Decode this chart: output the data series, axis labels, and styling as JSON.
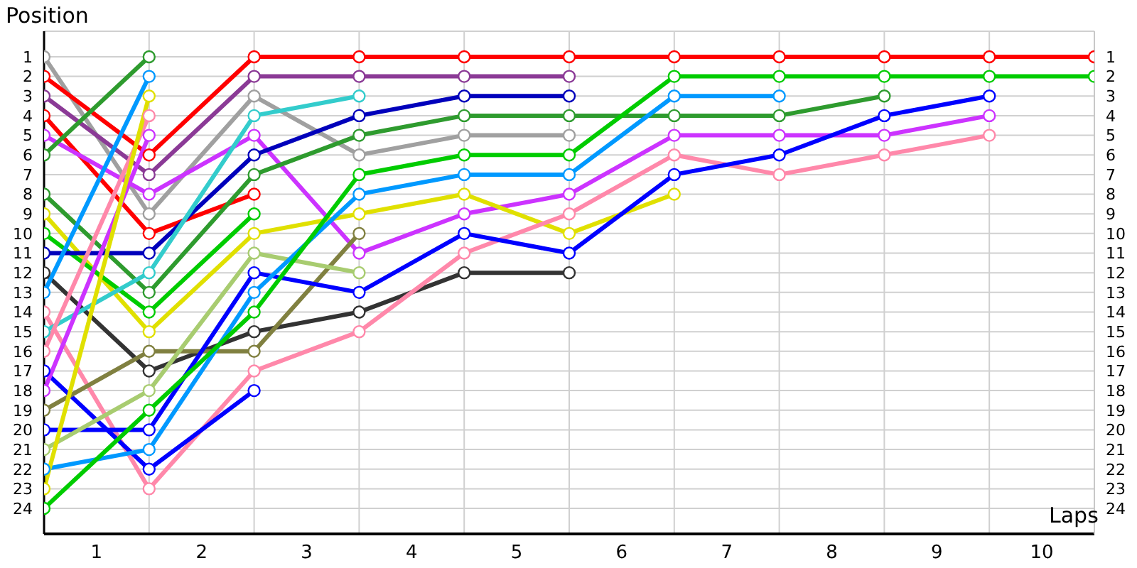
{
  "chart_data": {
    "type": "line",
    "xlabel": "Laps",
    "ylabel": "Position",
    "x": [
      0,
      1,
      2,
      3,
      4,
      5,
      6,
      7,
      8,
      9,
      10
    ],
    "xlim": [
      0,
      10
    ],
    "xticks": [
      {
        "value": 0,
        "label": null
      },
      {
        "value": 0.5,
        "label": "1"
      },
      {
        "value": 1,
        "label": null
      },
      {
        "value": 1.5,
        "label": "2"
      },
      {
        "value": 2,
        "label": null
      },
      {
        "value": 2.5,
        "label": "3"
      },
      {
        "value": 3,
        "label": null
      },
      {
        "value": 3.5,
        "label": "4"
      },
      {
        "value": 4,
        "label": null
      },
      {
        "value": 4.5,
        "label": "5"
      },
      {
        "value": 5,
        "label": null
      },
      {
        "value": 5.5,
        "label": "6"
      },
      {
        "value": 6,
        "label": null
      },
      {
        "value": 6.5,
        "label": "7"
      },
      {
        "value": 7,
        "label": null
      },
      {
        "value": 7.5,
        "label": "8"
      },
      {
        "value": 8,
        "label": null
      },
      {
        "value": 8.5,
        "label": "9"
      },
      {
        "value": 9,
        "label": null
      },
      {
        "value": 9.5,
        "label": "10"
      },
      {
        "value": 10,
        "label": null
      }
    ],
    "ylim": [
      25.3,
      -0.3
    ],
    "yticks": [
      1,
      2,
      3,
      4,
      5,
      6,
      7,
      8,
      9,
      10,
      11,
      12,
      13,
      14,
      15,
      16,
      17,
      18,
      19,
      20,
      21,
      22,
      23,
      24
    ],
    "y2lim": [
      25.3,
      -0.3
    ],
    "y2ticks": [
      1,
      2,
      3,
      4,
      5,
      6,
      7,
      8,
      9,
      10,
      11,
      12,
      13,
      14,
      15,
      16,
      17,
      18,
      19,
      20,
      21,
      22,
      23,
      24
    ],
    "grid": true,
    "marker": "circle",
    "line_style": "solid",
    "series": [
      {
        "color": "#a0a0a0",
        "values": [
          1,
          9,
          3,
          6,
          5,
          5,
          null,
          null,
          null,
          null,
          null
        ]
      },
      {
        "color": "#ff0000",
        "values": [
          2,
          6,
          1,
          1,
          1,
          1,
          1,
          1,
          1,
          1,
          1
        ]
      },
      {
        "color": "#8b3a96",
        "values": [
          3,
          7,
          2,
          2,
          2,
          2,
          null,
          null,
          null,
          null,
          null
        ]
      },
      {
        "color": "#ff0000",
        "values": [
          4,
          10,
          8,
          null,
          null,
          null,
          null,
          null,
          null,
          null,
          null
        ]
      },
      {
        "color": "#cc33ff",
        "values": [
          5,
          8,
          5,
          11,
          9,
          8,
          5,
          5,
          5,
          4,
          null
        ]
      },
      {
        "color": "#2e9b2e",
        "values": [
          6,
          1,
          null,
          null,
          null,
          null,
          null,
          null,
          null,
          null,
          null
        ]
      },
      {
        "color": "#2e9b2e",
        "values": [
          8,
          13,
          7,
          5,
          4,
          4,
          4,
          4,
          3,
          null,
          null
        ]
      },
      {
        "color": "#e0e000",
        "values": [
          9,
          15,
          10,
          9,
          8,
          10,
          8,
          null,
          null,
          null,
          null
        ]
      },
      {
        "color": "#00cc00",
        "values": [
          10,
          14,
          9,
          null,
          null,
          null,
          null,
          null,
          null,
          null,
          null
        ]
      },
      {
        "color": "#0000bb",
        "values": [
          11,
          11,
          6,
          4,
          3,
          3,
          null,
          null,
          null,
          null,
          null
        ]
      },
      {
        "color": "#333333",
        "values": [
          12,
          17,
          15,
          14,
          12,
          12,
          null,
          null,
          null,
          null,
          null
        ]
      },
      {
        "color": "#0099ff",
        "values": [
          13,
          2,
          null,
          null,
          null,
          null,
          null,
          null,
          null,
          null,
          null
        ]
      },
      {
        "color": "#ff88aa",
        "values": [
          14,
          23,
          17,
          15,
          11,
          9,
          6,
          7,
          6,
          5,
          null
        ]
      },
      {
        "color": "#33cccc",
        "values": [
          15,
          12,
          4,
          3,
          null,
          null,
          null,
          null,
          null,
          null,
          null
        ]
      },
      {
        "color": "#ff88aa",
        "values": [
          16,
          4,
          null,
          null,
          null,
          null,
          null,
          null,
          null,
          null,
          null
        ]
      },
      {
        "color": "#0000ff",
        "values": [
          17,
          22,
          18,
          null,
          null,
          null,
          null,
          null,
          null,
          null,
          null
        ]
      },
      {
        "color": "#cc33ff",
        "values": [
          18,
          5,
          null,
          null,
          null,
          null,
          null,
          null,
          null,
          null,
          null
        ]
      },
      {
        "color": "#808040",
        "values": [
          19,
          16,
          16,
          10,
          null,
          null,
          null,
          null,
          null,
          null,
          null
        ]
      },
      {
        "color": "#0000ff",
        "values": [
          20,
          20,
          12,
          13,
          10,
          11,
          7,
          6,
          4,
          3,
          null
        ]
      },
      {
        "color": "#a8cc70",
        "values": [
          21,
          18,
          11,
          12,
          null,
          null,
          null,
          null,
          null,
          null,
          null
        ]
      },
      {
        "color": "#0099ff",
        "values": [
          22,
          21,
          13,
          8,
          7,
          7,
          3,
          3,
          null,
          null,
          null
        ]
      },
      {
        "color": "#e0e000",
        "values": [
          23,
          3,
          null,
          null,
          null,
          null,
          null,
          null,
          null,
          null,
          null
        ]
      },
      {
        "color": "#00cc00",
        "values": [
          24,
          19,
          14,
          7,
          6,
          6,
          2,
          2,
          2,
          2,
          2
        ]
      }
    ]
  }
}
